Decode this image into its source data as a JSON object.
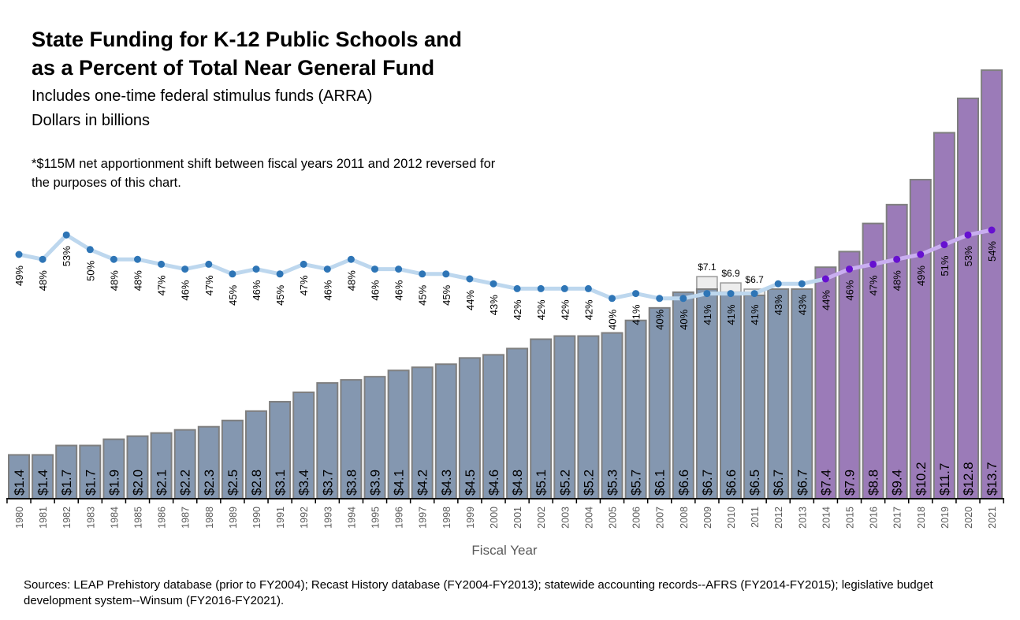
{
  "header": {
    "title_line1": "State Funding for K-12 Public Schools and",
    "title_line2": "as a Percent of Total Near General Fund",
    "subtitle1": "Includes one-time federal stimulus funds (ARRA)",
    "subtitle2": "Dollars in billions",
    "note": "*$115M net apportionment shift between fiscal years 2011 and 2012 reversed for the purposes of this chart."
  },
  "footer": {
    "sources": "Sources: LEAP Prehistory database (prior to FY2004); Recast History database (FY2004-FY2013); statewide accounting records--AFRS (FY2014-FY2015); legislative budget development  system--Winsum (FY2016-FY2021)."
  },
  "colors": {
    "bar_historic": "#8497b0",
    "bar_projected": "#9b7bb8",
    "bar_arra": "#ededed",
    "line_historic": "#bdd7ee",
    "dot_historic": "#2e75b6",
    "line_projected": "#c9aef0",
    "dot_projected": "#6610d0"
  },
  "chart_data": {
    "type": "bar+line",
    "xlabel": "Fiscal Year",
    "categories": [
      "1980",
      "1981",
      "1982",
      "1983",
      "1984",
      "1985",
      "1986",
      "1987",
      "1988",
      "1989",
      "1990",
      "1991",
      "1992",
      "1993",
      "1994",
      "1995",
      "1996",
      "1997",
      "1998",
      "1999",
      "2000",
      "2001",
      "2002",
      "2003",
      "2004",
      "2005",
      "2006",
      "2007",
      "2008",
      "2009",
      "2010",
      "2011",
      "2012",
      "2013",
      "2014",
      "2015",
      "2016",
      "2017",
      "2018",
      "2019",
      "2020",
      "2021"
    ],
    "series": [
      {
        "type": "bar",
        "values": [
          1.4,
          1.4,
          1.7,
          1.7,
          1.9,
          2.0,
          2.1,
          2.2,
          2.3,
          2.5,
          2.8,
          3.1,
          3.4,
          3.7,
          3.8,
          3.9,
          4.1,
          4.2,
          4.3,
          4.5,
          4.6,
          4.8,
          5.1,
          5.2,
          5.2,
          5.3,
          5.7,
          6.1,
          6.6,
          6.7,
          6.6,
          6.5,
          6.7,
          6.7,
          7.4,
          7.9,
          8.8,
          9.4,
          10.2,
          11.7,
          12.8,
          13.7
        ],
        "labels": [
          "$1.4",
          "$1.4",
          "$1.7",
          "$1.7",
          "$1.9",
          "$2.0",
          "$2.1",
          "$2.2",
          "$2.3",
          "$2.5",
          "$2.8",
          "$3.1",
          "$3.4",
          "$3.7",
          "$3.8",
          "$3.9",
          "$4.1",
          "$4.2",
          "$4.3",
          "$4.5",
          "$4.6",
          "$4.8",
          "$5.1",
          "$5.2",
          "$5.2",
          "$5.3",
          "$5.7",
          "$6.1",
          "$6.6",
          "$6.7",
          "$6.6",
          "$6.5",
          "$6.7",
          "$6.7",
          "$7.4",
          "$7.9",
          "$8.8",
          "$9.4",
          "$10.2",
          "$11.7",
          "$12.8",
          "$13.7"
        ]
      },
      {
        "type": "bar-stack-arra",
        "categories": [
          "2009",
          "2010",
          "2011"
        ],
        "totals": [
          7.1,
          6.9,
          6.7
        ],
        "labels": [
          "$7.1",
          "$6.9",
          "$6.7"
        ]
      },
      {
        "type": "line",
        "unit": "%",
        "values": [
          49,
          48,
          53,
          50,
          48,
          48,
          47,
          46,
          47,
          45,
          46,
          45,
          47,
          46,
          48,
          46,
          46,
          45,
          45,
          44,
          43,
          42,
          42,
          42,
          42,
          40,
          41,
          40,
          40,
          41,
          41,
          41,
          43,
          43,
          44,
          46,
          47,
          48,
          49,
          51,
          53,
          54
        ]
      }
    ],
    "projected_from": "2014",
    "ylim": [
      0,
      14
    ]
  }
}
